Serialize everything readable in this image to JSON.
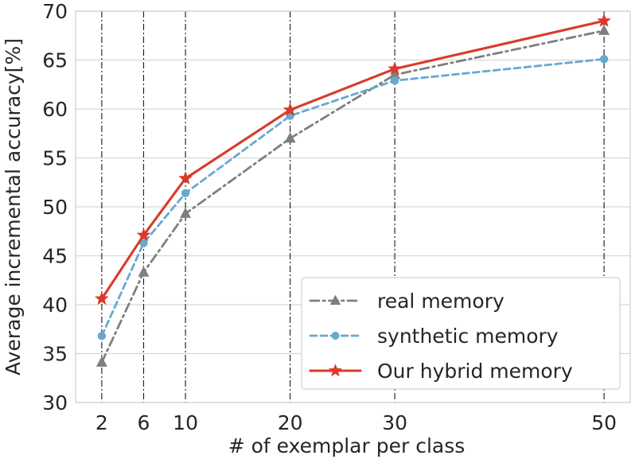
{
  "chart_data": {
    "type": "line",
    "xlabel": "# of exemplar per class",
    "ylabel": "Average incremental accuracy[%]",
    "x": [
      2,
      6,
      10,
      20,
      30,
      50
    ],
    "x_ticks": [
      2,
      6,
      10,
      20,
      30,
      50
    ],
    "x_tick_labels": [
      "2",
      "6",
      "10",
      "20",
      "30",
      "50"
    ],
    "xlim": [
      -0.5,
      52.5
    ],
    "ylim": [
      30,
      70
    ],
    "y_ticks": [
      30,
      35,
      40,
      45,
      50,
      55,
      60,
      65,
      70
    ],
    "y_tick_labels": [
      "30",
      "35",
      "40",
      "45",
      "50",
      "55",
      "60",
      "65",
      "70"
    ],
    "grid": {
      "horizontal": true,
      "vertical": "dash-dot at x ticks"
    },
    "legend_position": "bottom-right",
    "series": [
      {
        "name": "real memory",
        "values": [
          34.1,
          43.3,
          49.3,
          57.0,
          63.5,
          68.0
        ],
        "color": "#7f7f7f",
        "line_style": "dash-dot",
        "marker": "triangle"
      },
      {
        "name": "synthetic memory",
        "values": [
          36.8,
          46.3,
          51.4,
          59.3,
          62.9,
          65.1
        ],
        "color": "#67a9cf",
        "line_style": "dashed",
        "marker": "circle"
      },
      {
        "name": "Our hybrid memory",
        "values": [
          40.6,
          47.1,
          52.9,
          59.9,
          64.1,
          69.0
        ],
        "color": "#d93a2b",
        "line_style": "solid",
        "marker": "star"
      }
    ]
  }
}
